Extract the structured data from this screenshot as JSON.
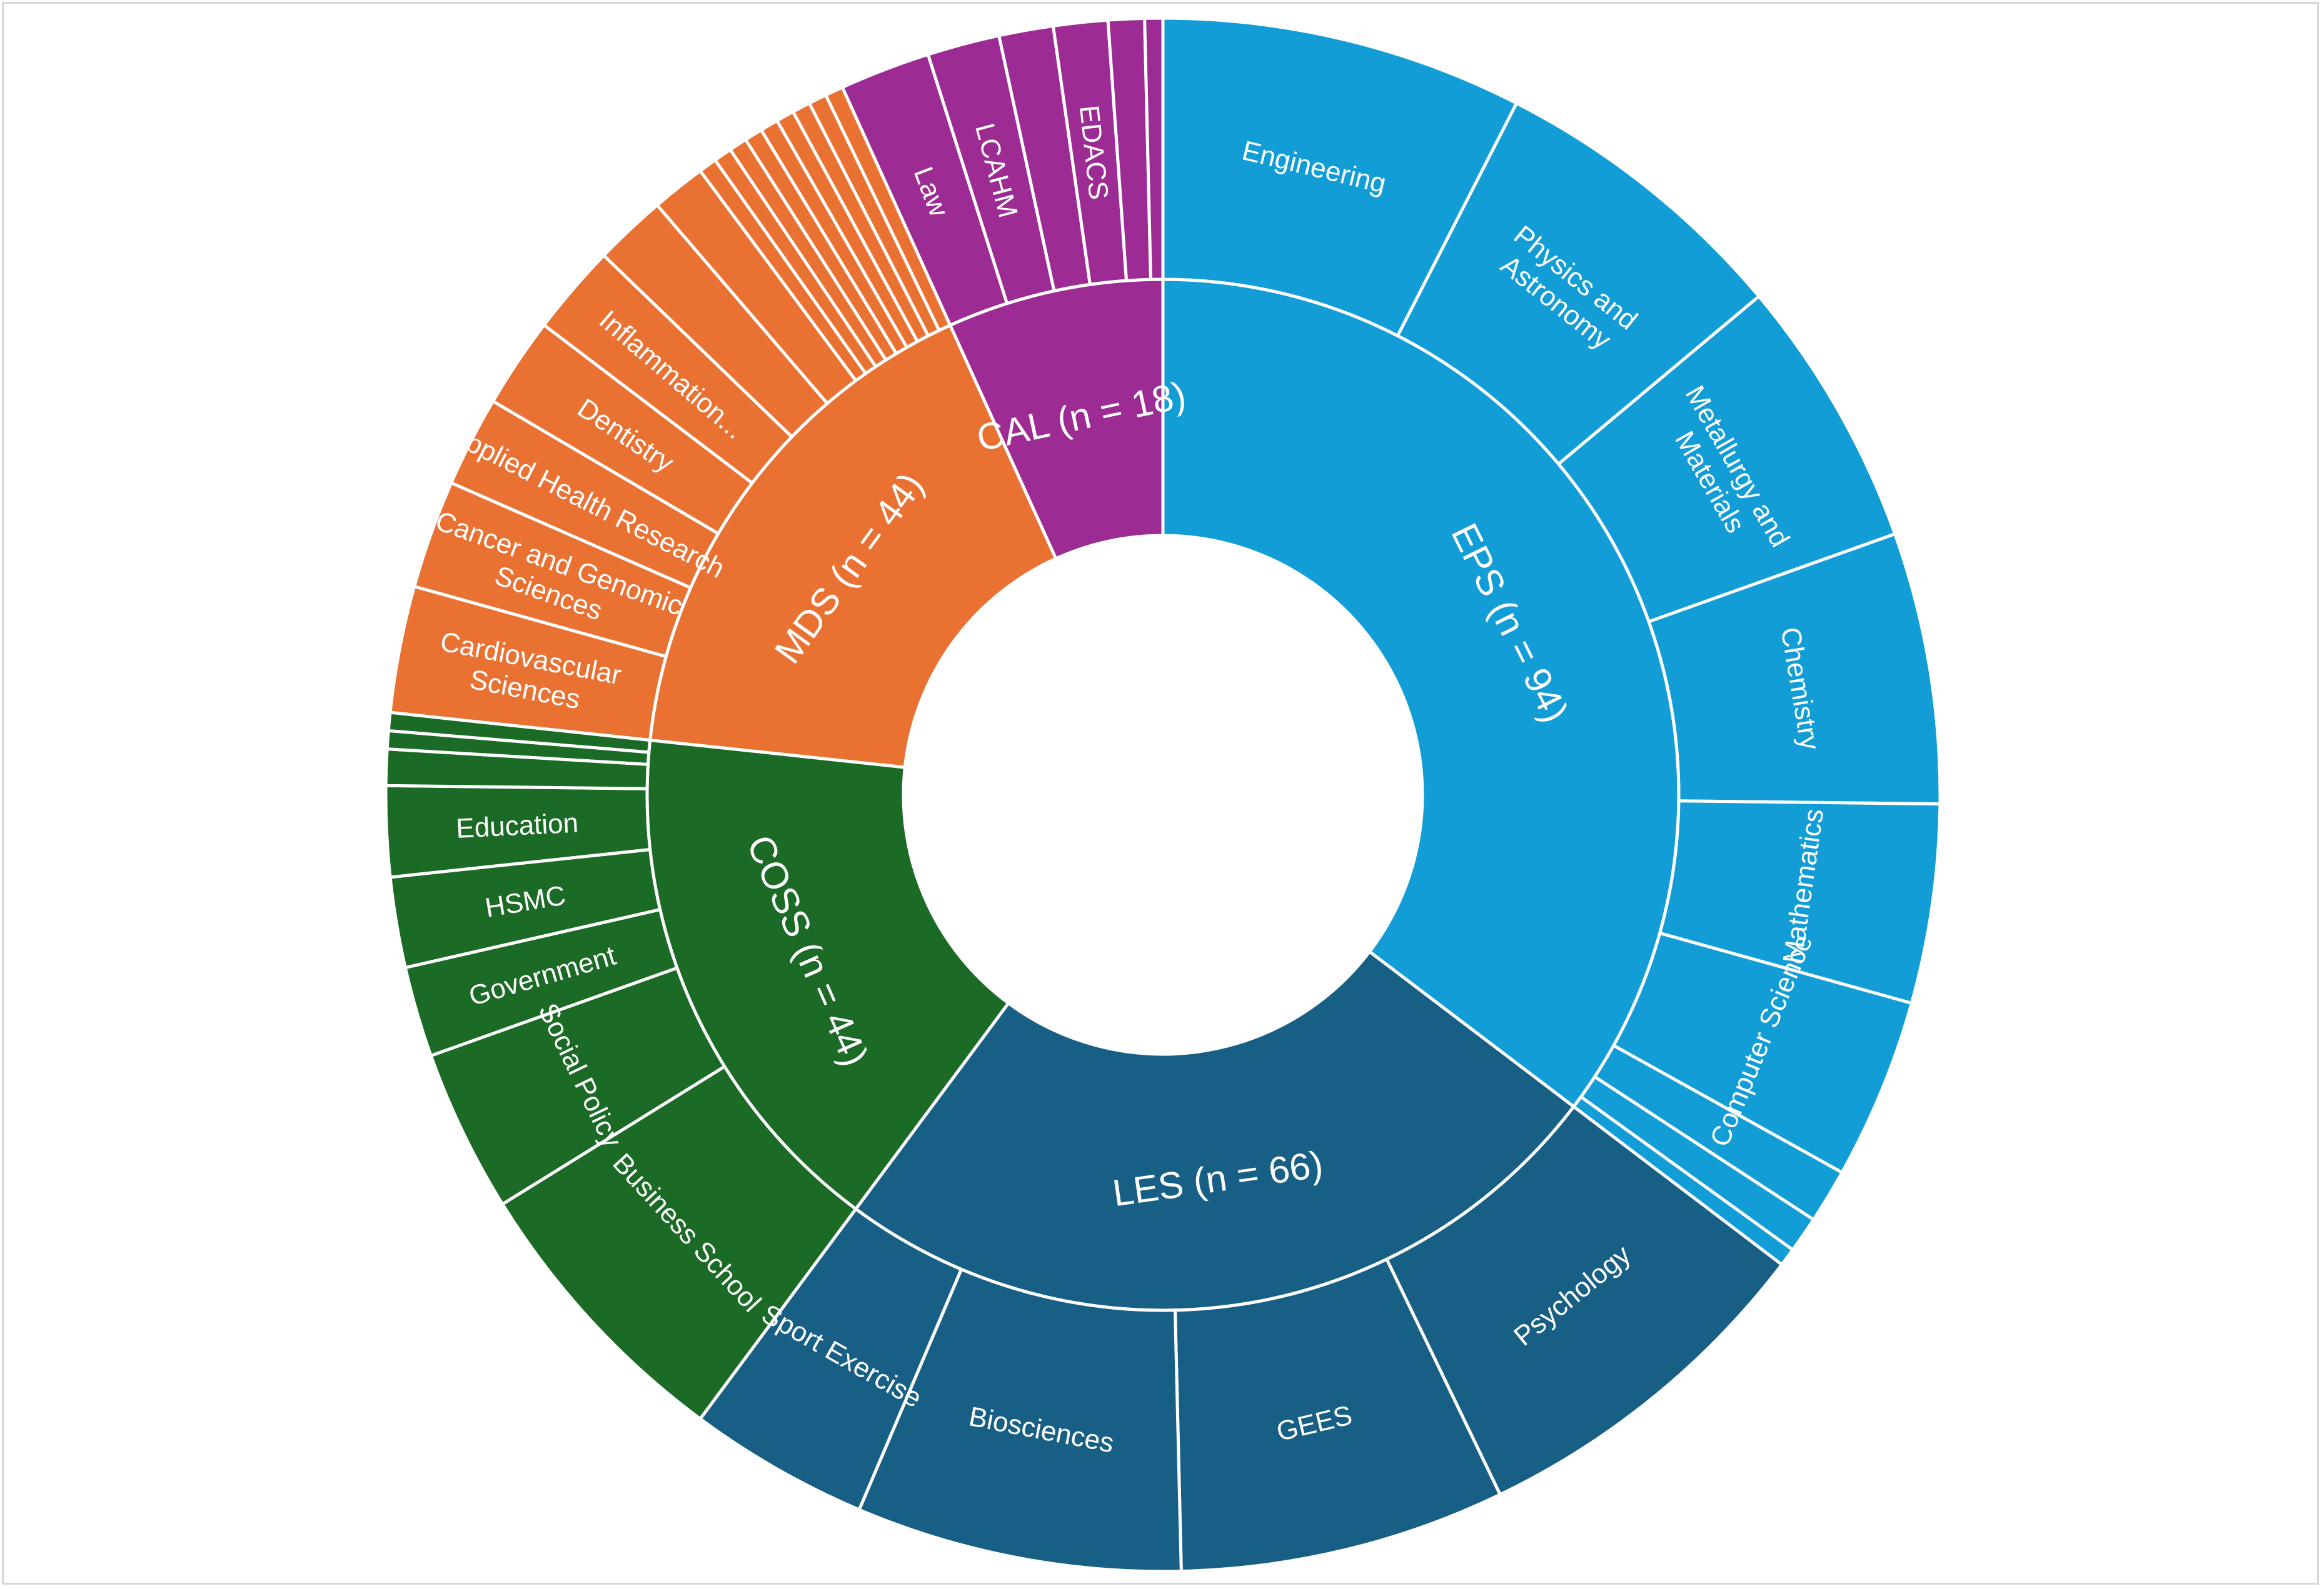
{
  "chart_data": {
    "type": "sunburst",
    "title": "",
    "colors": {
      "EPS": "#129dd6",
      "LES": "#185f85",
      "COSS": "#1b6a25",
      "MDS": "#e97132",
      "CAL": "#9c2b94",
      "border": "#ffffff"
    },
    "groups": [
      {
        "name": "EPS",
        "label": "EPS (n = 94)",
        "value": 94,
        "children": [
          {
            "name": "Engineering",
            "label": "Engineering",
            "value": 20
          },
          {
            "name": "Physics and Astronomy",
            "label": "Physics and\nAstronomy",
            "value": 17
          },
          {
            "name": "Metallurgy and Materials",
            "label": "Metallurgy and\nMaterials",
            "value": 15
          },
          {
            "name": "Chemistry",
            "label": "Chemistry",
            "value": 15
          },
          {
            "name": "Mathematics",
            "label": "Mathematics",
            "value": 11
          },
          {
            "name": "Computer Science",
            "label": "Computer Science",
            "value": 10
          },
          {
            "name": "",
            "label": "",
            "value": 3
          },
          {
            "name": "",
            "label": "",
            "value": 2
          },
          {
            "name": "",
            "label": "",
            "value": 1
          }
        ]
      },
      {
        "name": "LES",
        "label": "LES (n = 66)",
        "value": 66,
        "children": [
          {
            "name": "Psychology",
            "label": "Psychology",
            "value": 20
          },
          {
            "name": "GEES",
            "label": "GEES",
            "value": 18
          },
          {
            "name": "Biosciences",
            "label": "Biosciences",
            "value": 18
          },
          {
            "name": "Sport Exercise",
            "label": "Sport Exercise",
            "value": 10
          }
        ]
      },
      {
        "name": "COSS",
        "label": "COSS (n = 44)",
        "value": 44,
        "children": [
          {
            "name": "Business School",
            "label": "Business School",
            "value": 16
          },
          {
            "name": "Social Policy",
            "label": "Social Policy",
            "value": 9
          },
          {
            "name": "Government",
            "label": "Government",
            "value": 5
          },
          {
            "name": "HSMC",
            "label": "HSMC",
            "value": 5
          },
          {
            "name": "Education",
            "label": "Education",
            "value": 5
          },
          {
            "name": "",
            "label": "",
            "value": 2
          },
          {
            "name": "",
            "label": "",
            "value": 1
          },
          {
            "name": "",
            "label": "",
            "value": 1
          }
        ]
      },
      {
        "name": "MDS",
        "label": "MDS (n = 44)",
        "value": 44,
        "children": [
          {
            "name": "Cardiovascular Sciences",
            "label": "Cardiovascular\nSciences",
            "value": 7
          },
          {
            "name": "Cancer and Genomic Sciences",
            "label": "Cancer and Genomic\nSciences",
            "value": 6
          },
          {
            "name": "Applied Health Research",
            "label": "Applied Health Research",
            "value": 5
          },
          {
            "name": "Dentistry",
            "label": "Dentistry",
            "value": 5
          },
          {
            "name": "Inflammation...",
            "label": "Inflammation...",
            "value": 5
          },
          {
            "name": "",
            "label": "",
            "value": 4
          },
          {
            "name": "",
            "label": "",
            "value": 3
          },
          {
            "name": "",
            "label": "",
            "value": 1
          },
          {
            "name": "",
            "label": "",
            "value": 1
          },
          {
            "name": "",
            "label": "",
            "value": 1
          },
          {
            "name": "",
            "label": "",
            "value": 1
          },
          {
            "name": "",
            "label": "",
            "value": 1
          },
          {
            "name": "",
            "label": "",
            "value": 1
          },
          {
            "name": "",
            "label": "",
            "value": 1
          },
          {
            "name": "",
            "label": "",
            "value": 1
          },
          {
            "name": "",
            "label": "",
            "value": 1
          }
        ]
      },
      {
        "name": "CAL",
        "label": "CAL (n = 18)",
        "value": 18,
        "children": [
          {
            "name": "Law",
            "label": "Law",
            "value": 5
          },
          {
            "name": "LCAHM",
            "label": "LCAHM",
            "value": 4
          },
          {
            "name": "",
            "label": "",
            "value": 3
          },
          {
            "name": "EDACS",
            "label": "EDACS",
            "value": 3
          },
          {
            "name": "",
            "label": "",
            "value": 2
          },
          {
            "name": "",
            "label": "",
            "value": 1
          }
        ]
      }
    ]
  }
}
